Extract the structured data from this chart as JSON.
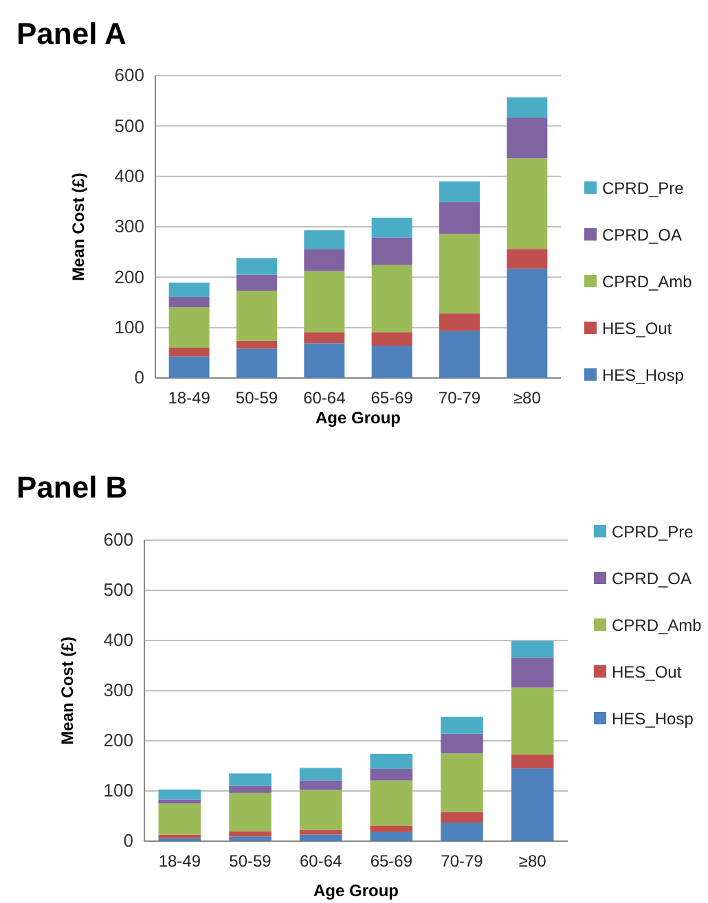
{
  "chart_data": [
    {
      "type": "bar",
      "title": "Panel A",
      "xlabel": "Age Group",
      "ylabel": "Mean Cost  (£)",
      "categories": [
        "18-49",
        "50-59",
        "60-64",
        "65-69",
        "70-79",
        "≥80"
      ],
      "stacked": true,
      "ylim": [
        0,
        600
      ],
      "yticks": [
        0,
        100,
        200,
        300,
        400,
        500,
        600
      ],
      "grid": "y",
      "legend": "right",
      "series": [
        {
          "name": "HES_Hosp",
          "color": "#4f81bd",
          "values": [
            43,
            58,
            69,
            64,
            93,
            217
          ]
        },
        {
          "name": "HES_Out",
          "color": "#c0504d",
          "values": [
            17,
            16,
            22,
            27,
            35,
            39
          ]
        },
        {
          "name": "CPRD_Amb",
          "color": "#9bbb59",
          "values": [
            80,
            99,
            121,
            133,
            158,
            180
          ]
        },
        {
          "name": "CPRD_OA",
          "color": "#8064a2",
          "values": [
            21,
            32,
            44,
            55,
            63,
            81
          ]
        },
        {
          "name": "CPRD_Pre",
          "color": "#4bacc6",
          "values": [
            28,
            33,
            37,
            39,
            41,
            40
          ]
        }
      ]
    },
    {
      "type": "bar",
      "title": "Panel B",
      "xlabel": "Age Group",
      "ylabel": "Mean Cost  (£)",
      "categories": [
        "18-49",
        "50-59",
        "60-64",
        "65-69",
        "70-79",
        "≥80"
      ],
      "stacked": true,
      "ylim": [
        0,
        600
      ],
      "yticks": [
        0,
        100,
        200,
        300,
        400,
        500,
        600
      ],
      "grid": "y",
      "legend": "right",
      "series": [
        {
          "name": "HES_Hosp",
          "color": "#4f81bd",
          "values": [
            6,
            9,
            13,
            18,
            37,
            145
          ]
        },
        {
          "name": "HES_Out",
          "color": "#c0504d",
          "values": [
            7,
            11,
            9,
            13,
            21,
            28
          ]
        },
        {
          "name": "CPRD_Amb",
          "color": "#9bbb59",
          "values": [
            62,
            76,
            80,
            90,
            117,
            133
          ]
        },
        {
          "name": "CPRD_OA",
          "color": "#8064a2",
          "values": [
            8,
            14,
            19,
            23,
            39,
            60
          ]
        },
        {
          "name": "CPRD_Pre",
          "color": "#4bacc6",
          "values": [
            20,
            25,
            25,
            30,
            34,
            33
          ]
        }
      ]
    }
  ]
}
